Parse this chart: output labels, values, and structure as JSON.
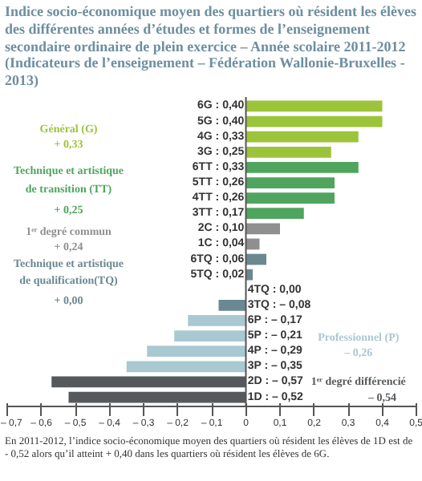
{
  "chart_data": {
    "type": "bar",
    "orientation": "horizontal",
    "title": "Indice socio-économique moyen des quartiers où résident les élèves des différentes années d’études et formes de l’enseignement secondaire ordinaire de plein exercice – Année scolaire 2011-2012 (Indicateurs de l’enseignement – Fédération Wallonie-Bruxelles - 2013)",
    "categories": [
      "6G : 0,40",
      "5G : 0,40",
      "4G : 0,33",
      "3G : 0,25",
      "6TT : 0,33",
      "5TT : 0,26",
      "4TT : 0,26",
      "3TT : 0,17",
      "2C : 0,10",
      "1C : 0,04",
      "6TQ : 0,06",
      "5TQ : 0,02",
      "4TQ : 0,00",
      "3TQ : – 0,08",
      "6P : – 0,17",
      "5P : – 0,21",
      "4P : – 0,29",
      "3P : – 0,35",
      "2D : – 0,57",
      "1D : – 0,52"
    ],
    "values": [
      0.4,
      0.4,
      0.33,
      0.25,
      0.33,
      0.26,
      0.26,
      0.17,
      0.1,
      0.04,
      0.06,
      0.02,
      0.0,
      -0.08,
      -0.17,
      -0.21,
      -0.29,
      -0.35,
      -0.57,
      -0.52
    ],
    "colors": [
      "#9cc43a",
      "#9cc43a",
      "#9cc43a",
      "#9cc43a",
      "#4fa55e",
      "#4fa55e",
      "#4fa55e",
      "#4fa55e",
      "#8f8f8f",
      "#8f8f8f",
      "#6b8892",
      "#6b8892",
      "#6b8892",
      "#6b8892",
      "#a9c8d2",
      "#a9c8d2",
      "#a9c8d2",
      "#a9c8d2",
      "#56595c",
      "#56595c"
    ],
    "xlim": [
      -0.7,
      0.5
    ],
    "xticks": [
      {
        "value": -0.7,
        "label": "– 0,7"
      },
      {
        "value": -0.6,
        "label": "– 0,6"
      },
      {
        "value": -0.5,
        "label": "– 0,5"
      },
      {
        "value": -0.4,
        "label": "– 0,4"
      },
      {
        "value": -0.3,
        "label": "– 0,3"
      },
      {
        "value": -0.2,
        "label": "– 0,2"
      },
      {
        "value": -0.1,
        "label": "– 0,1"
      },
      0,
      {
        "value": 0.1,
        "label": "0,1"
      },
      {
        "value": 0.2,
        "label": "0,2"
      },
      {
        "value": 0.3,
        "label": "0,3"
      },
      {
        "value": 0.4,
        "label": "0,4"
      },
      {
        "value": 0.5,
        "label": "0,5"
      }
    ],
    "tick_labels": "x",
    "annotations": [
      "Général (G)",
      "+ 0,33",
      "Technique et artistique",
      "de transition (TT)",
      "+ 0,25",
      "1ᵉʳ degré commun",
      "+ 0,24",
      "Technique et artistique",
      "de qualification(TQ)",
      "+ 0,00",
      "Professionnel (P)",
      "– 0,26",
      "1ᵉʳ degré différencié",
      "– 0,54",
      "En 2011-2012, l’indice socio-économique moyen des quartiers où résident les élèves de 1D est de - 0,52 alors qu’il atteint + 0,40 dans les quartiers où résident les élèves de 6G."
    ]
  }
}
